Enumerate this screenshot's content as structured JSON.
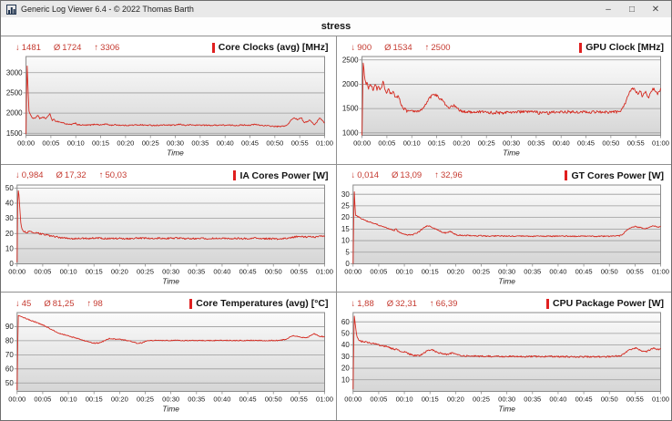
{
  "window": {
    "title": "Generic Log Viewer 6.4 - © 2022 Thomas Barth",
    "controls": {
      "minimize": "–",
      "maximize": "□",
      "close": "✕"
    }
  },
  "tab": {
    "label": "stress"
  },
  "symbols": {
    "min": "↓",
    "avg": "Ø",
    "max": "↑"
  },
  "colors": {
    "series": "#d42a20",
    "stats_text": "#c53a30",
    "title_marker": "#e01f1f",
    "grid_line": "#9b9b9b",
    "plot_border": "#8a8a8a",
    "plot_bg_top": "#fbfbfb",
    "plot_bg_bottom": "#d6d6d6",
    "tick_text": "#1a1a1a"
  },
  "time_axis": {
    "labels": [
      "00:00",
      "00:05",
      "00:10",
      "00:15",
      "00:20",
      "00:25",
      "00:30",
      "00:35",
      "00:40",
      "00:45",
      "00:50",
      "00:55",
      "01:00"
    ],
    "xlabel": "Time",
    "range_minutes": [
      0,
      60
    ]
  },
  "chart_data": [
    {
      "type": "line",
      "title": "Core Clocks (avg) [MHz]",
      "stats": {
        "min": "1481",
        "avg": "1724",
        "max": "3306"
      },
      "ylim": [
        1450,
        3400
      ],
      "y_ticks": [
        1500,
        2000,
        2500,
        3000
      ],
      "noise": 14,
      "points": [
        0,
        1481,
        0.2,
        3306,
        0.4,
        2600,
        0.6,
        2050,
        1,
        1920,
        1.5,
        1870,
        2,
        1890,
        2.4,
        1950,
        2.8,
        1860,
        3.2,
        1880,
        3.6,
        1900,
        4,
        1850,
        4.4,
        1930,
        4.8,
        1980,
        5,
        1900,
        5.3,
        1820,
        5.6,
        1840,
        6,
        1800,
        6.5,
        1790,
        7,
        1770,
        7.5,
        1760,
        8,
        1730,
        8.5,
        1720,
        9,
        1715,
        9.5,
        1730,
        10,
        1760,
        10.3,
        1710,
        11,
        1705,
        12,
        1700,
        13,
        1705,
        14,
        1725,
        15,
        1705,
        16,
        1730,
        17,
        1700,
        18,
        1710,
        19,
        1700,
        20,
        1695,
        21,
        1700,
        22,
        1705,
        23,
        1710,
        24,
        1700,
        25,
        1700,
        26,
        1695,
        27,
        1700,
        28,
        1705,
        29,
        1700,
        30,
        1700,
        31,
        1725,
        32,
        1695,
        33,
        1710,
        34,
        1700,
        35,
        1705,
        36,
        1700,
        37,
        1695,
        38,
        1700,
        39,
        1705,
        40,
        1700,
        41,
        1700,
        42,
        1695,
        43,
        1700,
        44,
        1705,
        45,
        1700,
        46,
        1720,
        47,
        1700,
        48,
        1690,
        49,
        1680,
        50,
        1670,
        51,
        1665,
        52,
        1685,
        52.5,
        1700,
        53,
        1780,
        53.5,
        1860,
        54,
        1880,
        54.5,
        1840,
        55,
        1870,
        55.3,
        1900,
        55.6,
        1820,
        56,
        1760,
        56.5,
        1790,
        57,
        1830,
        57.5,
        1760,
        58,
        1710,
        58.5,
        1790,
        59,
        1890,
        59.3,
        1850,
        59.6,
        1800,
        60,
        1760
      ]
    },
    {
      "type": "line",
      "title": "GPU Clock [MHz]",
      "stats": {
        "min": "900",
        "avg": "1534",
        "max": "2500"
      },
      "ylim": [
        950,
        2570
      ],
      "y_ticks": [
        1000,
        1500,
        2000,
        2500
      ],
      "noise": 28,
      "points": [
        0,
        900,
        0.25,
        2500,
        0.5,
        2150,
        0.8,
        1980,
        1,
        2050,
        1.3,
        1900,
        1.6,
        2000,
        2,
        1950,
        2.3,
        1850,
        2.6,
        2020,
        3,
        1900,
        3.3,
        1980,
        3.6,
        1860,
        4,
        1950,
        4.3,
        2080,
        4.6,
        1880,
        5,
        1800,
        5.3,
        1900,
        5.6,
        1820,
        6,
        1780,
        6.3,
        1850,
        6.6,
        1760,
        7,
        1720,
        7.3,
        1780,
        7.6,
        1680,
        8,
        1550,
        8.3,
        1480,
        8.6,
        1520,
        9,
        1450,
        9.5,
        1440,
        10,
        1460,
        10.5,
        1430,
        11,
        1450,
        11.5,
        1440,
        12,
        1470,
        12.5,
        1550,
        13,
        1620,
        13.5,
        1700,
        14,
        1760,
        14.5,
        1800,
        15,
        1770,
        15.5,
        1720,
        16,
        1680,
        16.5,
        1620,
        17,
        1540,
        17.5,
        1500,
        18,
        1540,
        18.5,
        1570,
        19,
        1520,
        19.5,
        1470,
        20,
        1440,
        20.5,
        1430,
        21,
        1435,
        22,
        1430,
        23,
        1435,
        24,
        1430,
        25,
        1435,
        25.5,
        1405,
        26,
        1430,
        26.5,
        1390,
        27,
        1425,
        27.5,
        1405,
        28,
        1430,
        28.5,
        1390,
        29,
        1430,
        30,
        1430,
        31,
        1430,
        32,
        1435,
        33,
        1430,
        34,
        1430,
        35,
        1435,
        35.5,
        1405,
        36,
        1430,
        37,
        1430,
        37.5,
        1395,
        38,
        1430,
        39,
        1435,
        39.5,
        1405,
        40,
        1430,
        41,
        1425,
        41.5,
        1445,
        42,
        1415,
        42.5,
        1435,
        43,
        1430,
        43.5,
        1405,
        44,
        1430,
        45,
        1435,
        45.5,
        1415,
        46,
        1430,
        47,
        1425,
        47.5,
        1445,
        48,
        1425,
        48.5,
        1435,
        49,
        1430,
        49.5,
        1415,
        50,
        1430,
        50.5,
        1445,
        51,
        1425,
        51.5,
        1435,
        52,
        1460,
        52.5,
        1520,
        53,
        1640,
        53.5,
        1780,
        54,
        1870,
        54.5,
        1920,
        55,
        1860,
        55.5,
        1810,
        56,
        1870,
        56.3,
        1720,
        56.6,
        1820,
        57,
        1870,
        57.5,
        1710,
        58,
        1810,
        58.5,
        1910,
        59,
        1860,
        59.3,
        1790,
        59.6,
        1850,
        60,
        1900
      ]
    },
    {
      "type": "line",
      "title": "IA Cores Power [W]",
      "stats": {
        "min": "0,984",
        "avg": "17,32",
        "max": "50,03"
      },
      "ylim": [
        0,
        52
      ],
      "y_ticks": [
        0,
        10,
        20,
        30,
        40,
        50
      ],
      "noise": 0.55,
      "points": [
        0,
        1,
        0.15,
        50,
        0.35,
        46,
        0.5,
        38,
        0.7,
        28,
        0.9,
        23,
        1.2,
        21.5,
        1.6,
        21,
        2,
        20.8,
        2.5,
        21.2,
        3,
        20.6,
        3.5,
        20.2,
        4,
        20.3,
        4.5,
        19.8,
        5,
        19.6,
        5.5,
        19.2,
        6,
        18.8,
        6.5,
        18.4,
        7,
        18.2,
        7.5,
        17.9,
        8,
        17.6,
        8.5,
        17.3,
        9,
        17.1,
        9.5,
        17,
        10,
        16.9,
        11,
        16.6,
        12,
        16.6,
        13,
        16.9,
        14,
        16.6,
        15,
        17.1,
        16,
        16.9,
        17,
        16.6,
        18,
        16.9,
        19,
        16.6,
        20,
        16.9,
        21,
        16.6,
        22,
        16.6,
        23,
        17,
        24,
        16.8,
        25,
        17,
        26,
        16.8,
        27,
        17,
        28,
        16.8,
        29,
        16.6,
        30,
        16.8,
        31,
        17,
        32,
        16.8,
        33,
        16.6,
        34,
        16.8,
        35,
        16.6,
        36,
        16.8,
        37,
        16.6,
        38,
        16.8,
        39,
        16.6,
        40,
        16.6,
        41,
        16.8,
        42,
        16.6,
        43,
        16.8,
        44,
        16.6,
        45,
        16.8,
        46,
        17,
        47,
        16.8,
        48,
        16.6,
        49,
        16.6,
        50,
        16.5,
        51,
        16.4,
        52,
        16.6,
        53,
        17.1,
        54,
        17.6,
        55,
        18.1,
        55.5,
        17.9,
        56,
        17.6,
        57,
        17.9,
        58,
        17.6,
        58.5,
        18.1,
        59,
        18.6,
        59.5,
        18.1,
        60,
        17.9
      ]
    },
    {
      "type": "line",
      "title": "GT Cores Power [W]",
      "stats": {
        "min": "0,014",
        "avg": "13,09",
        "max": "32,96"
      },
      "ylim": [
        0,
        34
      ],
      "y_ticks": [
        0,
        5,
        10,
        15,
        20,
        25,
        30
      ],
      "noise": 0.25,
      "points": [
        0,
        0,
        0.2,
        33,
        0.45,
        21,
        0.8,
        20.5,
        1.2,
        20.2,
        1.6,
        19.6,
        2,
        19.2,
        2.5,
        18.6,
        3,
        18.2,
        3.5,
        17.8,
        4,
        17.6,
        4.5,
        17.2,
        5,
        16.7,
        5.5,
        16.2,
        6,
        15.9,
        6.5,
        15.6,
        7,
        15.2,
        7.5,
        14.7,
        8,
        14.2,
        8.3,
        15.1,
        8.6,
        14.4,
        9,
        13.6,
        9.5,
        13.1,
        10,
        12.6,
        10.5,
        12.5,
        11,
        12.5,
        11.5,
        12.5,
        12,
        12.9,
        12.5,
        13.4,
        13,
        14,
        13.5,
        15,
        14,
        15.9,
        14.5,
        16.5,
        15,
        16.1,
        15.5,
        15.6,
        16,
        15.1,
        16.5,
        14.6,
        17,
        14.1,
        17.5,
        13.6,
        18,
        13.3,
        18.5,
        13.6,
        19,
        14,
        19.5,
        13.1,
        20,
        12.6,
        20.5,
        12.4,
        21,
        12.3,
        22,
        12.3,
        23,
        12.2,
        24,
        12.1,
        25,
        12.1,
        26,
        12,
        27,
        12,
        28,
        12,
        29,
        12,
        30,
        12,
        31,
        11.9,
        32,
        11.9,
        33,
        11.9,
        34,
        11.9,
        35,
        11.9,
        36,
        11.9,
        37,
        11.9,
        38,
        11.9,
        39,
        11.9,
        40,
        11.9,
        41,
        11.9,
        42,
        11.9,
        43,
        11.9,
        44,
        11.9,
        45,
        11.9,
        46,
        11.9,
        47,
        11.9,
        48,
        11.9,
        49,
        11.9,
        50,
        11.9,
        51,
        12,
        52,
        12.1,
        52.5,
        12.6,
        53,
        13.6,
        53.5,
        14.6,
        54,
        15.5,
        54.5,
        16,
        55,
        16.1,
        55.5,
        15.9,
        56,
        15.6,
        56.5,
        15.3,
        57,
        15.1,
        57.5,
        15.4,
        58,
        15.9,
        58.5,
        16.3,
        59,
        16.1,
        59.5,
        15.9,
        60,
        16.1
      ]
    },
    {
      "type": "line",
      "title": "Core Temperatures (avg) [°C]",
      "stats": {
        "min": "45",
        "avg": "81,25",
        "max": "98"
      },
      "ylim": [
        44,
        100
      ],
      "y_ticks": [
        50,
        60,
        70,
        80,
        90
      ],
      "noise": 0.35,
      "points": [
        0,
        45,
        0.2,
        98,
        0.6,
        97.5,
        1,
        96.8,
        1.5,
        96.2,
        2,
        95.4,
        2.5,
        94.7,
        3,
        94.1,
        3.5,
        93.3,
        4,
        92.6,
        4.5,
        92,
        5,
        91.2,
        5.5,
        90.3,
        6,
        89.4,
        6.5,
        88.4,
        7,
        87.4,
        7.5,
        86.4,
        8,
        85.6,
        8.5,
        85,
        9,
        84.5,
        9.5,
        84,
        10,
        83.4,
        10.5,
        82.9,
        11,
        82.4,
        11.5,
        81.9,
        12,
        81.4,
        12.5,
        80.9,
        13,
        80.2,
        13.5,
        79.6,
        14,
        79,
        14.5,
        78.6,
        15,
        78.3,
        15.5,
        78.2,
        16,
        78.5,
        16.5,
        79.1,
        17,
        80,
        17.5,
        81,
        18,
        81.5,
        18.5,
        81.3,
        19,
        81.2,
        19.5,
        81.1,
        20,
        81,
        20.5,
        80.8,
        21,
        80.5,
        21.5,
        80.1,
        22,
        79.8,
        22.5,
        79.4,
        23,
        78.6,
        23.5,
        78.2,
        24,
        78.3,
        24.5,
        78.6,
        25,
        79.5,
        25.5,
        80,
        26,
        80.2,
        27,
        80.2,
        28,
        80.2,
        29,
        80.1,
        30,
        80.2,
        31,
        80.2,
        32,
        80.1,
        33,
        80.2,
        34,
        80.1,
        35,
        80.2,
        36,
        80.1,
        37,
        80.2,
        38,
        80.1,
        39,
        80.2,
        40,
        80.1,
        41,
        80.2,
        42,
        80.1,
        43,
        80.2,
        44,
        80.1,
        45,
        80.2,
        46,
        80.1,
        47,
        80.2,
        48,
        80.1,
        49,
        80.1,
        50,
        80.1,
        51,
        80.2,
        52,
        80.6,
        52.5,
        81.1,
        53,
        82.1,
        53.5,
        83.1,
        54,
        83.6,
        54.5,
        83.2,
        55,
        82.6,
        55.5,
        82.1,
        56,
        82.3,
        56.5,
        82.1,
        57,
        83.1,
        57.5,
        84.1,
        58,
        85,
        58.5,
        84.1,
        59,
        83.2,
        59.5,
        83.1,
        60,
        82.6
      ]
    },
    {
      "type": "line",
      "title": "CPU Package Power [W]",
      "stats": {
        "min": "1,88",
        "avg": "32,31",
        "max": "66,39"
      },
      "ylim": [
        0,
        68
      ],
      "y_ticks": [
        10,
        20,
        30,
        40,
        50,
        60
      ],
      "noise": 0.7,
      "points": [
        0,
        1.9,
        0.2,
        66.4,
        0.45,
        57,
        0.7,
        48,
        1,
        45,
        1.5,
        43.2,
        2,
        43,
        2.5,
        42.6,
        3,
        42.1,
        3.5,
        41.6,
        4,
        41.1,
        4.5,
        40.6,
        5,
        40.1,
        5.5,
        39.6,
        6,
        39.1,
        6.5,
        38.6,
        7,
        38,
        7.5,
        37.1,
        8,
        36.6,
        8.5,
        36.1,
        9,
        35.1,
        9.5,
        34.6,
        10,
        34.1,
        10.5,
        33.1,
        11,
        32.1,
        11.5,
        31.6,
        12,
        31.1,
        12.5,
        30.9,
        13,
        31.1,
        13.5,
        32.1,
        14,
        33.6,
        14.5,
        35.1,
        15,
        36.1,
        15.5,
        35.6,
        16,
        34.6,
        16.5,
        33.6,
        17,
        33.1,
        17.5,
        32.6,
        18,
        32.1,
        18.5,
        31.6,
        19,
        32.6,
        19.5,
        33.6,
        20,
        32.1,
        20.5,
        31.1,
        21,
        30.9,
        21.5,
        30.6,
        22,
        30.6,
        23,
        30.6,
        24,
        30.4,
        25,
        30.3,
        26,
        30.3,
        27,
        30.3,
        28,
        30.3,
        29,
        30.1,
        30,
        30.1,
        31,
        30.1,
        32,
        30.1,
        33,
        30.1,
        34,
        30.1,
        35,
        30.1,
        36,
        30.1,
        37,
        30.1,
        38,
        30.1,
        39,
        30.1,
        40,
        30.1,
        41,
        29.9,
        42,
        29.9,
        43,
        29.9,
        44,
        29.9,
        45,
        29.9,
        46,
        29.9,
        47,
        29.9,
        48,
        29.9,
        49,
        29.9,
        50,
        29.9,
        51,
        30.1,
        52,
        30.6,
        52.5,
        31.6,
        53,
        33.1,
        53.5,
        34.6,
        54,
        35.6,
        54.5,
        36.6,
        55,
        37.6,
        55.5,
        37.1,
        56,
        35.6,
        56.5,
        34.6,
        57,
        34.1,
        57.5,
        35.1,
        58,
        36.1,
        58.5,
        37.1,
        59,
        37.1,
        59.5,
        36.1,
        60,
        36.6
      ]
    }
  ]
}
